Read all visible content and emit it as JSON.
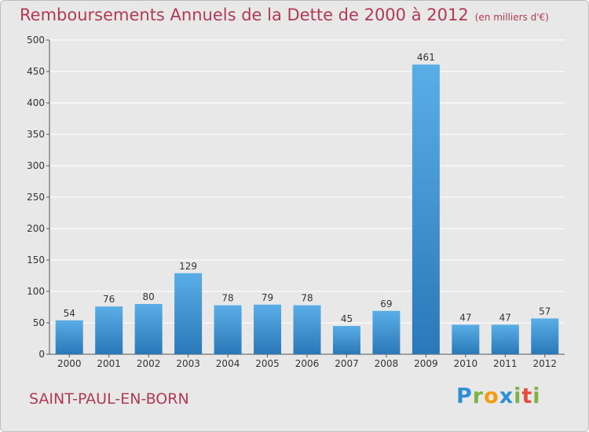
{
  "page": {
    "title": "Remboursements Annuels de la Dette de 2000 à 2012",
    "unit_note": "(en milliers d'€)",
    "commune": "SAINT-PAUL-EN-BORN",
    "logo": "Proxiti",
    "colors": {
      "title": "#b03a56",
      "bar_top": "#5aaee6",
      "bar_bottom": "#2a78b8",
      "logo": [
        "#2f8fd6",
        "#7cb342",
        "#f39c12",
        "#2f8fd6",
        "#7cb342",
        "#e74c3c",
        "#7cb342"
      ]
    }
  },
  "chart_data": {
    "type": "bar",
    "title": "Remboursements Annuels de la Dette de 2000 à 2012",
    "xlabel": "",
    "ylabel": "",
    "categories": [
      "2000",
      "2001",
      "2002",
      "2003",
      "2004",
      "2005",
      "2006",
      "2007",
      "2008",
      "2009",
      "2010",
      "2011",
      "2012"
    ],
    "values": [
      54,
      76,
      80,
      129,
      78,
      79,
      78,
      45,
      69,
      461,
      47,
      47,
      57
    ],
    "ylim": [
      0,
      500
    ],
    "yticks": [
      0,
      50,
      100,
      150,
      200,
      250,
      300,
      350,
      400,
      450,
      500
    ],
    "grid": true,
    "legend": "none"
  }
}
